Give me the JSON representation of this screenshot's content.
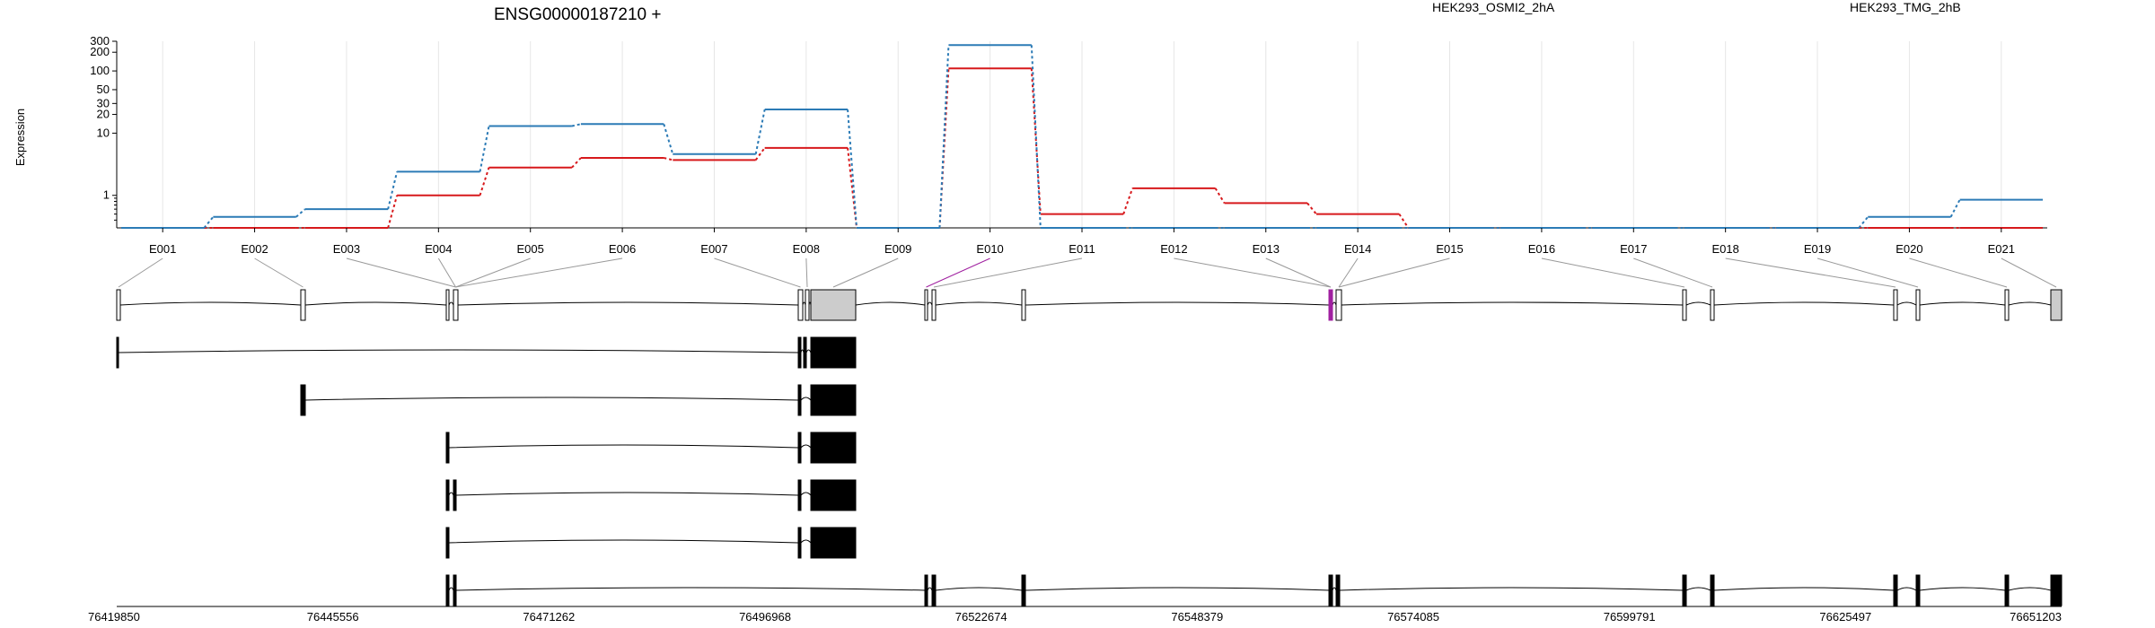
{
  "title": "ENSG00000187210 +",
  "ylabel": "Expression",
  "colors": {
    "OSMI2": "#d7191c",
    "TMG": "#2c7bb6",
    "highlight": "#a020a0",
    "grid": "#e6e6e6",
    "exon_fill": "#cccccc"
  },
  "chart_data": {
    "type": "line",
    "title": "ENSG00000187210 +",
    "ylabel": "Expression",
    "xlabel": "",
    "yscale": "log",
    "yticks": [
      1,
      10,
      20,
      30,
      50,
      100,
      200,
      300
    ],
    "ylim": [
      0.3,
      300
    ],
    "grid": true,
    "legend_position": "top",
    "categories": [
      "E001",
      "E002",
      "E003",
      "E004",
      "E005",
      "E006",
      "E007",
      "E008",
      "E009",
      "E010",
      "E011",
      "E012",
      "E013",
      "E014",
      "E015",
      "E016",
      "E017",
      "E018",
      "E019",
      "E020",
      "E021"
    ],
    "series": [
      {
        "name": "HEK293_OSMI2_2hA",
        "color": "#d7191c",
        "values": [
          0.3,
          0.3,
          0.3,
          1.0,
          2.8,
          4.0,
          3.7,
          5.8,
          0.3,
          110,
          0.5,
          1.3,
          0.75,
          0.5,
          0.3,
          0.3,
          0.3,
          0.3,
          0.3,
          0.3,
          0.3
        ]
      },
      {
        "name": "HEK293_TMG_2hB",
        "color": "#2c7bb6",
        "values": [
          0.3,
          0.45,
          0.6,
          2.4,
          13,
          14,
          4.6,
          24,
          0.3,
          260,
          0.3,
          0.3,
          0.3,
          0.3,
          0.3,
          0.3,
          0.3,
          0.3,
          0.3,
          0.45,
          0.85
        ]
      }
    ],
    "genomic_ticks": [
      "76419850",
      "76445556",
      "76471262",
      "76496968",
      "76522674",
      "76548379",
      "76574085",
      "76599791",
      "76625497",
      "76651203"
    ],
    "highlighted_exon": "E010"
  }
}
